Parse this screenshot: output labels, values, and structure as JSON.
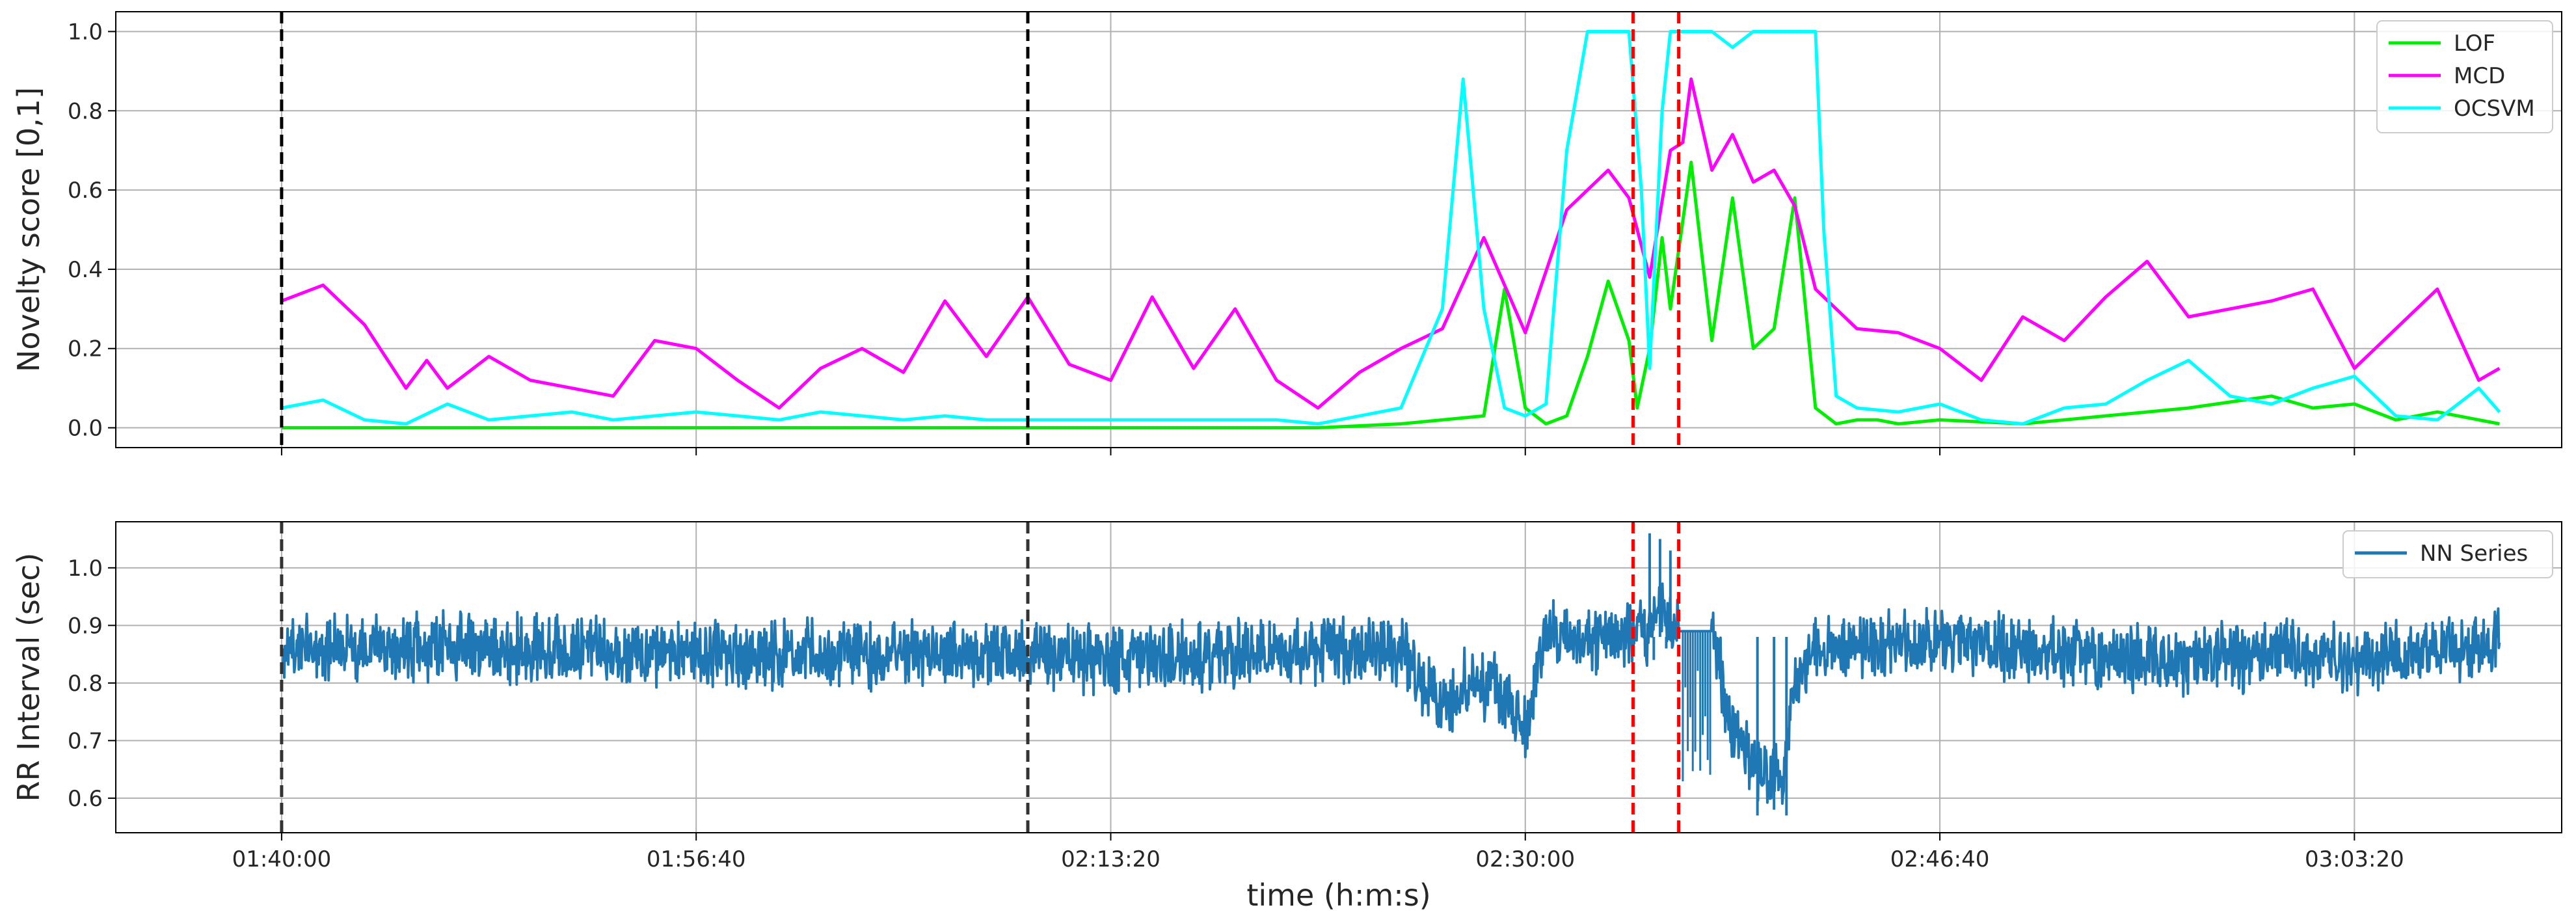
{
  "chart_data": [
    {
      "type": "line",
      "ylabel": "Novelty score [0,1]",
      "xlim": [
        5600,
        11500
      ],
      "ylim": [
        -0.05,
        1.05
      ],
      "x_ticks": [
        6000,
        7000,
        8000,
        9000,
        10000,
        11000
      ],
      "y_ticks": [
        0.0,
        0.2,
        0.4,
        0.6,
        0.8,
        1.0
      ],
      "y_tick_labels": [
        "0.0",
        "0.2",
        "0.4",
        "0.6",
        "0.8",
        "1.0"
      ],
      "grid": true,
      "legend": "upper right",
      "vlines": [
        {
          "x": 6000,
          "color": "#000000"
        },
        {
          "x": 7800,
          "color": "#000000"
        },
        {
          "x": 9260,
          "color": "#ff0000"
        },
        {
          "x": 9370,
          "color": "#ff0000"
        }
      ],
      "series": [
        {
          "name": "LOF",
          "color": "#00ee00",
          "x": [
            6000,
            6500,
            7000,
            7500,
            8000,
            8500,
            8700,
            8900,
            8950,
            9000,
            9050,
            9100,
            9150,
            9200,
            9250,
            9270,
            9300,
            9330,
            9350,
            9400,
            9450,
            9500,
            9550,
            9600,
            9650,
            9700,
            9750,
            9800,
            9850,
            9900,
            10000,
            10200,
            10400,
            10500,
            10600,
            10800,
            10900,
            11000,
            11100,
            11200,
            11350
          ],
          "y": [
            0.0,
            0.0,
            0.0,
            0.0,
            0.0,
            0.0,
            0.01,
            0.03,
            0.35,
            0.05,
            0.01,
            0.03,
            0.18,
            0.37,
            0.22,
            0.05,
            0.2,
            0.48,
            0.3,
            0.67,
            0.22,
            0.58,
            0.2,
            0.25,
            0.58,
            0.05,
            0.01,
            0.02,
            0.02,
            0.01,
            0.02,
            0.01,
            0.03,
            0.04,
            0.05,
            0.08,
            0.05,
            0.06,
            0.02,
            0.04,
            0.01
          ]
        },
        {
          "name": "MCD",
          "color": "#ff00ff",
          "x": [
            6000,
            6100,
            6200,
            6300,
            6350,
            6400,
            6500,
            6600,
            6700,
            6800,
            6900,
            7000,
            7100,
            7200,
            7300,
            7400,
            7500,
            7600,
            7700,
            7800,
            7900,
            8000,
            8100,
            8200,
            8300,
            8400,
            8500,
            8600,
            8700,
            8800,
            8900,
            9000,
            9100,
            9200,
            9250,
            9300,
            9350,
            9380,
            9400,
            9450,
            9500,
            9550,
            9600,
            9650,
            9700,
            9750,
            9800,
            9900,
            10000,
            10100,
            10200,
            10300,
            10400,
            10500,
            10600,
            10700,
            10800,
            10900,
            11000,
            11100,
            11200,
            11300,
            11350
          ],
          "y": [
            0.32,
            0.36,
            0.26,
            0.1,
            0.17,
            0.1,
            0.18,
            0.12,
            0.1,
            0.08,
            0.22,
            0.2,
            0.12,
            0.05,
            0.15,
            0.2,
            0.14,
            0.32,
            0.18,
            0.33,
            0.16,
            0.12,
            0.33,
            0.15,
            0.3,
            0.12,
            0.05,
            0.14,
            0.2,
            0.25,
            0.48,
            0.24,
            0.55,
            0.65,
            0.58,
            0.38,
            0.7,
            0.72,
            0.88,
            0.65,
            0.74,
            0.62,
            0.65,
            0.56,
            0.35,
            0.3,
            0.25,
            0.24,
            0.2,
            0.12,
            0.28,
            0.22,
            0.33,
            0.42,
            0.28,
            0.3,
            0.32,
            0.35,
            0.15,
            0.25,
            0.35,
            0.12,
            0.15
          ]
        },
        {
          "name": "OCSVM",
          "color": "#00ffff",
          "x": [
            6000,
            6100,
            6200,
            6300,
            6400,
            6500,
            6600,
            6700,
            6800,
            6900,
            7000,
            7100,
            7200,
            7300,
            7400,
            7500,
            7600,
            7700,
            7800,
            7900,
            8000,
            8100,
            8200,
            8300,
            8400,
            8500,
            8600,
            8700,
            8800,
            8850,
            8900,
            8950,
            9000,
            9050,
            9100,
            9150,
            9180,
            9250,
            9280,
            9300,
            9330,
            9350,
            9450,
            9500,
            9550,
            9600,
            9700,
            9720,
            9750,
            9800,
            9900,
            10000,
            10100,
            10200,
            10300,
            10400,
            10500,
            10600,
            10700,
            10800,
            10900,
            11000,
            11100,
            11200,
            11300,
            11350
          ],
          "y": [
            0.05,
            0.07,
            0.02,
            0.01,
            0.06,
            0.02,
            0.03,
            0.04,
            0.02,
            0.03,
            0.04,
            0.03,
            0.02,
            0.04,
            0.03,
            0.02,
            0.03,
            0.02,
            0.02,
            0.02,
            0.02,
            0.02,
            0.02,
            0.02,
            0.02,
            0.01,
            0.03,
            0.05,
            0.3,
            0.88,
            0.3,
            0.05,
            0.03,
            0.06,
            0.7,
            1.0,
            1.0,
            1.0,
            0.6,
            0.15,
            0.8,
            1.0,
            1.0,
            0.96,
            1.0,
            1.0,
            1.0,
            0.5,
            0.08,
            0.05,
            0.04,
            0.06,
            0.02,
            0.01,
            0.05,
            0.06,
            0.12,
            0.17,
            0.08,
            0.06,
            0.1,
            0.13,
            0.03,
            0.02,
            0.1,
            0.04
          ]
        }
      ]
    },
    {
      "type": "line",
      "xlabel": "time (h:m:s)",
      "ylabel": "RR Interval (sec)",
      "xlim": [
        5600,
        11500
      ],
      "ylim": [
        0.54,
        1.08
      ],
      "x_ticks": [
        6000,
        7000,
        8000,
        9000,
        10000,
        11000
      ],
      "x_tick_labels": [
        "01:40:00",
        "01:56:40",
        "02:13:20",
        "02:30:00",
        "02:46:40",
        "03:03:20"
      ],
      "y_ticks": [
        0.6,
        0.7,
        0.8,
        0.9,
        1.0
      ],
      "y_tick_labels": [
        "0.6",
        "0.7",
        "0.8",
        "0.9",
        "1.0"
      ],
      "grid": true,
      "legend": "upper right",
      "vlines": [
        {
          "x": 6000,
          "color": "#333333"
        },
        {
          "x": 7800,
          "color": "#333333"
        },
        {
          "x": 9260,
          "color": "#ff0000"
        },
        {
          "x": 9370,
          "color": "#ff0000"
        }
      ],
      "series": [
        {
          "name": "NN Series",
          "color": "#1f77b4",
          "noise": 0.045,
          "x": [
            6000,
            6500,
            7000,
            7500,
            7800,
            8000,
            8300,
            8500,
            8700,
            8750,
            8800,
            8850,
            8900,
            8950,
            9000,
            9050,
            9100,
            9150,
            9200,
            9250,
            9270,
            9300,
            9320,
            9340,
            9370,
            9380,
            9450,
            9500,
            9550,
            9600,
            9620,
            9650,
            9700,
            9800,
            10000,
            10200,
            10400,
            10600,
            10800,
            11000,
            11200,
            11350
          ],
          "y": [
            0.86,
            0.86,
            0.85,
            0.85,
            0.85,
            0.84,
            0.85,
            0.86,
            0.86,
            0.8,
            0.76,
            0.8,
            0.8,
            0.78,
            0.72,
            0.88,
            0.88,
            0.87,
            0.88,
            0.89,
            0.89,
            0.88,
            0.93,
            0.92,
            0.89,
            0.89,
            0.89,
            0.72,
            0.66,
            0.64,
            0.62,
            0.8,
            0.87,
            0.87,
            0.87,
            0.86,
            0.85,
            0.84,
            0.85,
            0.84,
            0.86,
            0.87
          ],
          "spikes": [
            {
              "x": 9300,
              "y": 1.06
            },
            {
              "x": 9310,
              "y": 0.84
            },
            {
              "x": 9325,
              "y": 1.05
            },
            {
              "x": 9340,
              "y": 0.86
            },
            {
              "x": 9350,
              "y": 1.03
            },
            {
              "x": 9560,
              "y": 0.57
            },
            {
              "x": 9600,
              "y": 0.58
            },
            {
              "x": 9630,
              "y": 0.57
            }
          ]
        }
      ]
    }
  ]
}
